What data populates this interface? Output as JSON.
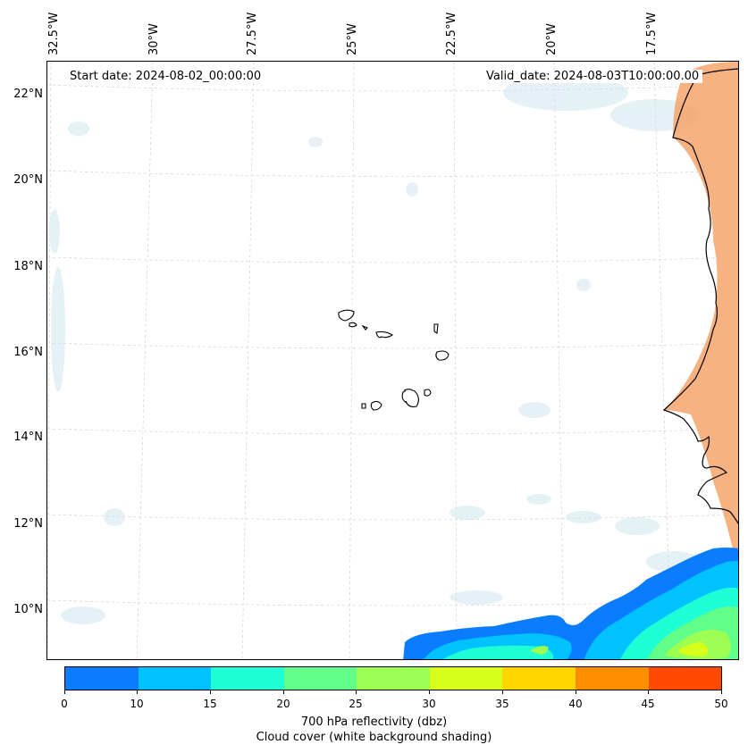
{
  "map": {
    "start_date": "Start date: 2024-08-02_00:00:00",
    "valid_date": "Valid_date: 2024-08-03T10:00:00.00",
    "lon_labels": [
      "32.5°W",
      "30°W",
      "27.5°W",
      "25°W",
      "22.5°W",
      "20°W",
      "17.5°W"
    ],
    "lat_labels": [
      "22°N",
      "20°N",
      "18°N",
      "16°N",
      "14°N",
      "12°N",
      "10°N"
    ],
    "land_color": "#f5a56b",
    "cloud_color": "#cfe6ee"
  },
  "colorbar": {
    "ticks": [
      "0",
      "10",
      "15",
      "20",
      "25",
      "30",
      "35",
      "40",
      "45",
      "50"
    ],
    "colors": [
      "#0a7cff",
      "#00c2ff",
      "#1effd6",
      "#61ff8a",
      "#9dff52",
      "#d8ff1c",
      "#ffd600",
      "#ff8f00",
      "#ff4a00"
    ],
    "label_line1": "700 hPa reflectivity (dbz)",
    "label_line2": "Cloud cover (white background shading)"
  }
}
